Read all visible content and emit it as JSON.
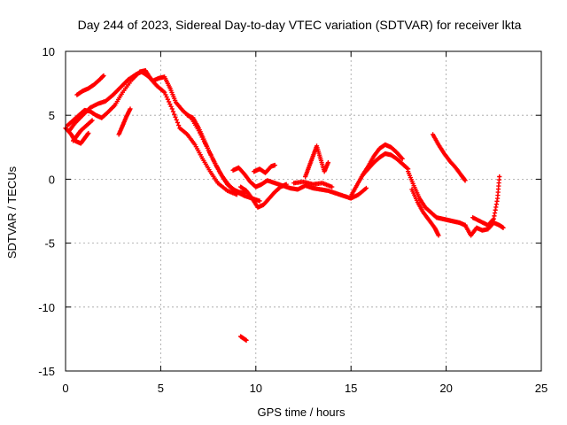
{
  "chart_data": {
    "type": "scatter",
    "title": "Day 244 of 2023, Sidereal Day-to-day VTEC variation (SDTVAR) for receiver lkta",
    "xlabel": "GPS time / hours",
    "ylabel": "SDTVAR / TECUs",
    "xlim": [
      0,
      25
    ],
    "ylim": [
      -15,
      10
    ],
    "xticks": [
      0,
      5,
      10,
      15,
      20,
      25
    ],
    "yticks": [
      -15,
      -10,
      -5,
      0,
      5,
      10
    ],
    "grid": true,
    "marker": "+",
    "series": [
      {
        "name": "lkta",
        "color": "#ff0000",
        "tracks": [
          {
            "x": [
              0.0,
              0.3,
              0.5,
              0.8,
              1.0,
              1.2
            ],
            "y": [
              4.0,
              3.5,
              3.0,
              2.8,
              3.2,
              3.6
            ]
          },
          {
            "x": [
              0.1,
              0.4,
              0.7,
              1.0,
              1.3,
              1.6,
              1.9,
              2.2,
              2.6,
              3.0,
              3.5,
              3.9,
              4.2,
              4.5,
              4.8,
              5.2,
              5.6,
              6.0,
              6.4,
              6.8,
              7.2,
              7.6,
              8.0,
              8.5,
              9.0
            ],
            "y": [
              4.2,
              4.6,
              5.0,
              5.4,
              5.3,
              5.0,
              4.8,
              5.2,
              5.8,
              6.8,
              7.8,
              8.4,
              8.5,
              7.8,
              7.3,
              6.8,
              5.5,
              4.0,
              3.5,
              2.7,
              1.6,
              0.6,
              -0.3,
              -0.9,
              -1.2
            ]
          },
          {
            "x": [
              0.2,
              0.5,
              0.9,
              1.3,
              1.7,
              2.1,
              2.5,
              2.9,
              3.3,
              3.7,
              4.0,
              4.3,
              4.6,
              4.9,
              5.2,
              5.5,
              5.8,
              6.2,
              6.6,
              7.0,
              7.4,
              7.8,
              8.2,
              8.6,
              9.0,
              9.4,
              9.8,
              10.2
            ],
            "y": [
              3.8,
              4.4,
              5.0,
              5.6,
              5.9,
              6.1,
              6.6,
              7.2,
              7.8,
              8.2,
              8.4,
              8.1,
              7.7,
              7.9,
              8.0,
              7.1,
              6.0,
              5.3,
              4.8,
              3.8,
              2.6,
              1.4,
              0.3,
              -0.5,
              -1.0,
              -1.3,
              -1.5,
              -1.7
            ]
          },
          {
            "x": [
              0.6,
              0.9,
              1.2,
              1.5,
              1.8,
              2.0
            ],
            "y": [
              6.6,
              6.9,
              7.1,
              7.4,
              7.8,
              8.1
            ]
          },
          {
            "x": [
              0.4,
              0.6,
              0.8,
              1.1,
              1.4
            ],
            "y": [
              3.0,
              3.4,
              3.8,
              4.2,
              4.6
            ]
          },
          {
            "x": [
              2.8,
              3.0,
              3.2,
              3.4
            ],
            "y": [
              3.5,
              4.2,
              4.9,
              5.5
            ]
          },
          {
            "x": [
              6.4,
              6.7,
              7.0,
              7.3,
              7.6,
              7.9,
              8.2,
              8.5,
              8.8,
              9.1,
              9.4
            ],
            "y": [
              5.0,
              4.8,
              4.0,
              3.0,
              2.0,
              1.1,
              0.3,
              -0.4,
              -0.8,
              -1.0,
              -1.1
            ]
          },
          {
            "x": [
              8.8,
              9.1,
              9.4,
              9.7,
              10.0,
              10.3,
              10.6,
              11.0,
              11.4,
              11.8,
              12.2,
              12.6,
              13.0,
              13.4,
              13.8,
              14.2,
              14.6,
              15.0,
              15.4,
              15.8
            ],
            "y": [
              0.7,
              0.9,
              0.4,
              -0.2,
              -0.6,
              -0.4,
              -0.1,
              -0.3,
              -0.5,
              -0.7,
              -0.8,
              -0.5,
              -0.7,
              -0.8,
              -0.9,
              -1.1,
              -1.3,
              -1.5,
              -1.2,
              -0.7
            ]
          },
          {
            "x": [
              9.2,
              9.5,
              9.8,
              10.1,
              10.4,
              10.7,
              11.0,
              11.3,
              11.6
            ],
            "y": [
              -0.6,
              -0.9,
              -1.5,
              -2.2,
              -2.0,
              -1.5,
              -1.0,
              -0.6,
              -0.4
            ]
          },
          {
            "x": [
              9.9,
              10.2,
              10.5,
              10.8,
              11.0
            ],
            "y": [
              0.6,
              0.8,
              0.5,
              1.0,
              1.1
            ]
          },
          {
            "x": [
              12.6,
              12.8,
              13.0,
              13.2,
              13.4,
              13.6,
              13.8
            ],
            "y": [
              0.2,
              1.0,
              1.8,
              2.6,
              1.6,
              0.6,
              1.3
            ]
          },
          {
            "x": [
              12.0,
              12.5,
              13.0,
              13.5,
              14.0
            ],
            "y": [
              -0.3,
              -0.2,
              -0.4,
              -0.3,
              -0.6
            ]
          },
          {
            "x": [
              15.0,
              15.3,
              15.6,
              15.9,
              16.2,
              16.5,
              16.8,
              17.1,
              17.4,
              17.7
            ],
            "y": [
              -1.3,
              -0.5,
              0.3,
              1.0,
              1.8,
              2.4,
              2.7,
              2.5,
              2.1,
              1.6
            ]
          },
          {
            "x": [
              15.6,
              15.9,
              16.2,
              16.5,
              16.8,
              17.1,
              17.4,
              17.7,
              18.0
            ],
            "y": [
              0.3,
              0.8,
              1.3,
              1.7,
              2.0,
              1.9,
              1.6,
              1.2,
              0.8
            ]
          },
          {
            "x": [
              18.0,
              18.3,
              18.6,
              18.9,
              19.2,
              19.5,
              19.8,
              20.1,
              20.4,
              20.7,
              21.0
            ],
            "y": [
              0.6,
              -0.5,
              -1.5,
              -2.2,
              -2.6,
              -3.0,
              -3.1,
              -3.2,
              -3.3,
              -3.4,
              -3.6
            ]
          },
          {
            "x": [
              18.2,
              18.5,
              18.8,
              19.1,
              19.4,
              19.6
            ],
            "y": [
              -0.8,
              -1.8,
              -2.6,
              -3.2,
              -3.8,
              -4.4
            ]
          },
          {
            "x": [
              19.3,
              19.6,
              19.9,
              20.2,
              20.5,
              20.8,
              21.0
            ],
            "y": [
              3.5,
              2.7,
              2.0,
              1.4,
              0.9,
              0.3,
              -0.1
            ]
          },
          {
            "x": [
              21.0,
              21.3,
              21.6,
              21.9,
              22.2,
              22.5,
              22.8,
              23.0
            ],
            "y": [
              -3.6,
              -4.4,
              -3.8,
              -4.0,
              -3.9,
              -3.4,
              -3.6,
              -3.8
            ]
          },
          {
            "x": [
              21.4,
              21.8,
              22.2,
              22.5,
              22.7,
              22.8
            ],
            "y": [
              -3.0,
              -3.3,
              -3.6,
              -3.1,
              -1.5,
              0.2
            ]
          },
          {
            "x": [
              9.2,
              9.5
            ],
            "y": [
              -12.3,
              -12.6
            ]
          }
        ]
      }
    ]
  }
}
